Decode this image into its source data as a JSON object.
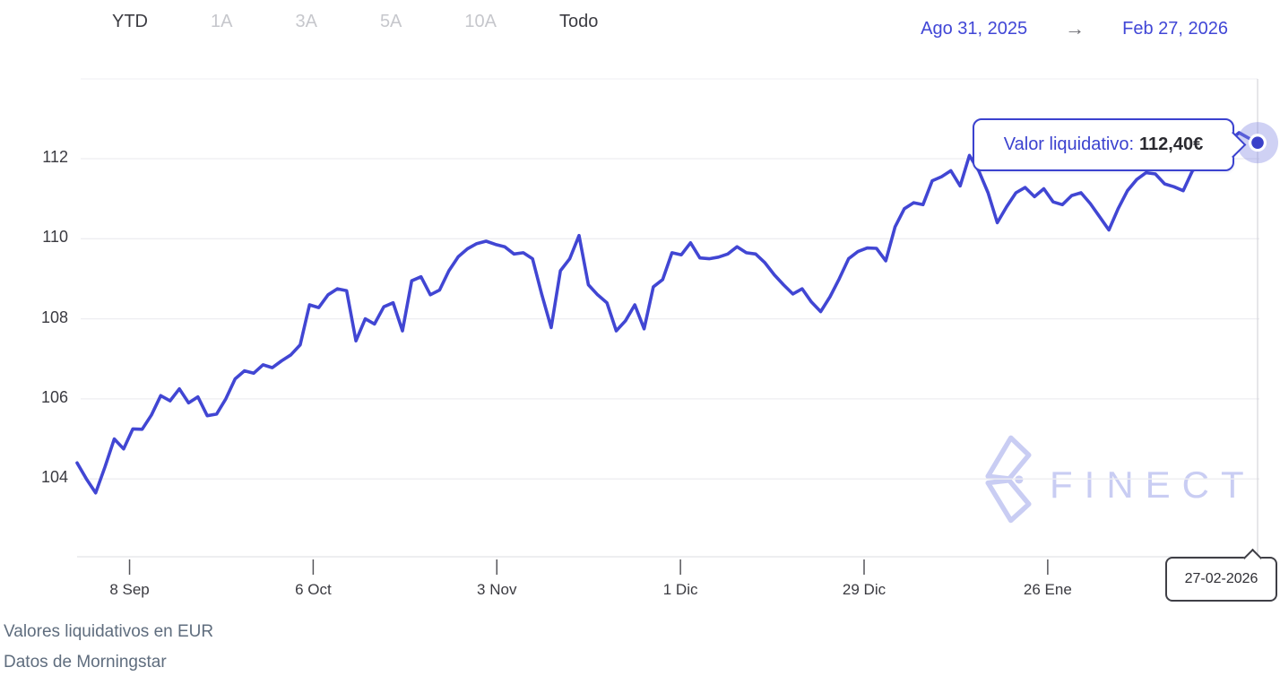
{
  "toolbar": {
    "periods": [
      {
        "label": "YTD",
        "enabled": true
      },
      {
        "label": "1A",
        "enabled": false
      },
      {
        "label": "3A",
        "enabled": false
      },
      {
        "label": "5A",
        "enabled": false
      },
      {
        "label": "10A",
        "enabled": false
      },
      {
        "label": "Todo",
        "enabled": true
      }
    ],
    "date_range": {
      "start": "Ago 31, 2025",
      "arrow": "→",
      "end": "Feb 27, 2026"
    }
  },
  "tooltip": {
    "label": "Valor liquidativo:",
    "value": "112,40€"
  },
  "date_label": "27-02-2026",
  "watermark": "FINECT",
  "footer": {
    "line1": "Valores liquidativos en EUR",
    "line2": "Datos de Morningstar"
  },
  "colors": {
    "line": "#4146d3",
    "dot": "#3a40c9",
    "halo": "rgba(128,135,226,0.38)",
    "grid": "#ededf1",
    "axis_line": "#e7e9ec",
    "tick": "#55555a",
    "crosshair": "#d8d8dd",
    "accent_blue": "#3b42cf"
  },
  "chart_data": {
    "type": "line",
    "title": "Valor liquidativo del fondo",
    "series_name": "Valor liquidativo",
    "unit": "EUR",
    "x_start": "Ago 31, 2025",
    "x_end": "Feb 27, 2026",
    "x_range_days": 180,
    "ylim": [
      103.5,
      113
    ],
    "yticks": [
      104,
      106,
      108,
      110,
      112
    ],
    "xticks": [
      {
        "label": "8 Sep",
        "day": 8
      },
      {
        "label": "6 Oct",
        "day": 36
      },
      {
        "label": "3 Nov",
        "day": 64
      },
      {
        "label": "1 Dic",
        "day": 92
      },
      {
        "label": "29 Dic",
        "day": 120
      },
      {
        "label": "26 Ene",
        "day": 148
      }
    ],
    "grid": true,
    "legend": false,
    "values": [
      104.4,
      104.0,
      103.65,
      104.3,
      105.0,
      104.75,
      105.25,
      105.24,
      105.6,
      106.08,
      105.95,
      106.25,
      105.9,
      106.05,
      105.58,
      105.62,
      106.0,
      106.5,
      106.7,
      106.64,
      106.85,
      106.78,
      106.95,
      107.1,
      107.35,
      108.35,
      108.28,
      108.6,
      108.75,
      108.7,
      107.45,
      108.0,
      107.87,
      108.3,
      108.4,
      107.7,
      108.95,
      109.05,
      108.6,
      108.72,
      109.2,
      109.55,
      109.75,
      109.88,
      109.94,
      109.86,
      109.8,
      109.62,
      109.65,
      109.5,
      108.6,
      107.78,
      109.2,
      109.5,
      110.08,
      108.85,
      108.6,
      108.4,
      107.7,
      107.95,
      108.35,
      107.75,
      108.8,
      108.98,
      109.65,
      109.6,
      109.9,
      109.52,
      109.5,
      109.54,
      109.62,
      109.8,
      109.65,
      109.62,
      109.4,
      109.1,
      108.85,
      108.62,
      108.75,
      108.42,
      108.18,
      108.55,
      109.0,
      109.5,
      109.68,
      109.77,
      109.76,
      109.45,
      110.3,
      110.75,
      110.9,
      110.85,
      111.45,
      111.55,
      111.7,
      111.32,
      112.08,
      111.7,
      111.15,
      110.4,
      110.8,
      111.15,
      111.28,
      111.05,
      111.25,
      110.92,
      110.85,
      111.08,
      111.15,
      110.88,
      110.55,
      110.22,
      110.75,
      111.2,
      111.48,
      111.65,
      111.62,
      111.37,
      111.3,
      111.2,
      111.7,
      111.85,
      112.05,
      112.2,
      112.45,
      112.65,
      112.52,
      112.4
    ],
    "last_point": {
      "date": "27-02-2026",
      "value": 112.4,
      "value_label": "112,40€"
    }
  }
}
